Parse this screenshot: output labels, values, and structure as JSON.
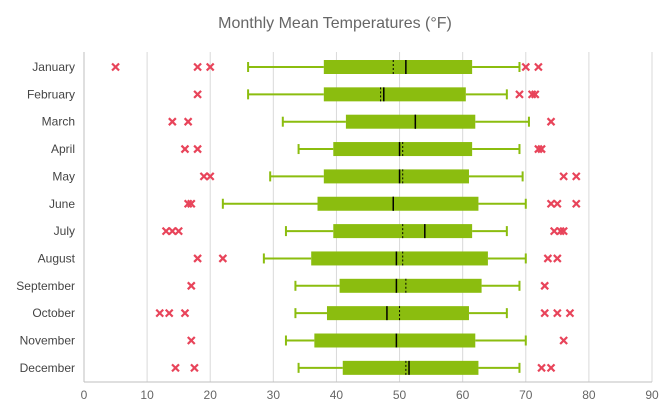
{
  "chart_data": {
    "type": "boxplot",
    "title": "Monthly Mean Temperatures (°F)",
    "xlabel": "",
    "ylabel": "",
    "xlim": [
      0,
      90
    ],
    "x_ticks": [
      0,
      10,
      20,
      30,
      40,
      50,
      60,
      70,
      80,
      90
    ],
    "grid": "vertical",
    "colors": {
      "box": "#8bbd0f",
      "outlier": "#e8445a",
      "grid": "#d9d9d9",
      "median": "#000000",
      "mean": "#000000"
    },
    "categories": [
      "January",
      "February",
      "March",
      "April",
      "May",
      "June",
      "July",
      "August",
      "September",
      "October",
      "November",
      "December"
    ],
    "boxes": [
      {
        "category": "January",
        "whisker_low": 26,
        "q1": 38,
        "median": 51,
        "mean": 49,
        "q3": 61.5,
        "whisker_high": 69,
        "outliers": [
          5,
          18,
          20,
          70,
          72
        ]
      },
      {
        "category": "February",
        "whisker_low": 26,
        "q1": 38,
        "median": 47.5,
        "mean": 47,
        "q3": 60.5,
        "whisker_high": 67,
        "outliers": [
          18,
          69,
          71,
          71.5
        ]
      },
      {
        "category": "March",
        "whisker_low": 31.5,
        "q1": 41.5,
        "median": 52.5,
        "mean": 52.5,
        "q3": 62,
        "whisker_high": 70.5,
        "outliers": [
          14,
          16.5,
          74
        ]
      },
      {
        "category": "April",
        "whisker_low": 34,
        "q1": 39.5,
        "median": 50,
        "mean": 50.5,
        "q3": 61.5,
        "whisker_high": 69,
        "outliers": [
          16,
          18,
          72,
          72.5
        ]
      },
      {
        "category": "May",
        "whisker_low": 29.5,
        "q1": 38,
        "median": 50,
        "mean": 50.5,
        "q3": 61,
        "whisker_high": 69.5,
        "outliers": [
          19,
          20,
          76,
          78
        ]
      },
      {
        "category": "June",
        "whisker_low": 22,
        "q1": 37,
        "median": 49,
        "mean": 49,
        "q3": 62.5,
        "whisker_high": 70,
        "outliers": [
          16.5,
          17,
          74,
          75,
          78
        ]
      },
      {
        "category": "July",
        "whisker_low": 32,
        "q1": 39.5,
        "median": 54,
        "mean": 50.5,
        "q3": 61.5,
        "whisker_high": 67,
        "outliers": [
          13,
          14,
          15,
          74.5,
          75.5,
          76
        ]
      },
      {
        "category": "August",
        "whisker_low": 28.5,
        "q1": 36,
        "median": 49.5,
        "mean": 50.5,
        "q3": 64,
        "whisker_high": 70,
        "outliers": [
          18,
          22,
          73.5,
          75
        ]
      },
      {
        "category": "September",
        "whisker_low": 33.5,
        "q1": 40.5,
        "median": 49.5,
        "mean": 51,
        "q3": 63,
        "whisker_high": 69,
        "outliers": [
          17,
          73
        ]
      },
      {
        "category": "October",
        "whisker_low": 33.5,
        "q1": 38.5,
        "median": 48,
        "mean": 50,
        "q3": 61,
        "whisker_high": 67,
        "outliers": [
          12,
          13.5,
          16,
          73,
          75,
          77
        ]
      },
      {
        "category": "November",
        "whisker_low": 32,
        "q1": 36.5,
        "median": 49.5,
        "mean": 49.5,
        "q3": 62,
        "whisker_high": 70,
        "outliers": [
          17,
          76
        ]
      },
      {
        "category": "December",
        "whisker_low": 34,
        "q1": 41,
        "median": 51.5,
        "mean": 51,
        "q3": 62.5,
        "whisker_high": 69,
        "outliers": [
          14.5,
          17.5,
          72.5,
          74
        ]
      }
    ]
  }
}
